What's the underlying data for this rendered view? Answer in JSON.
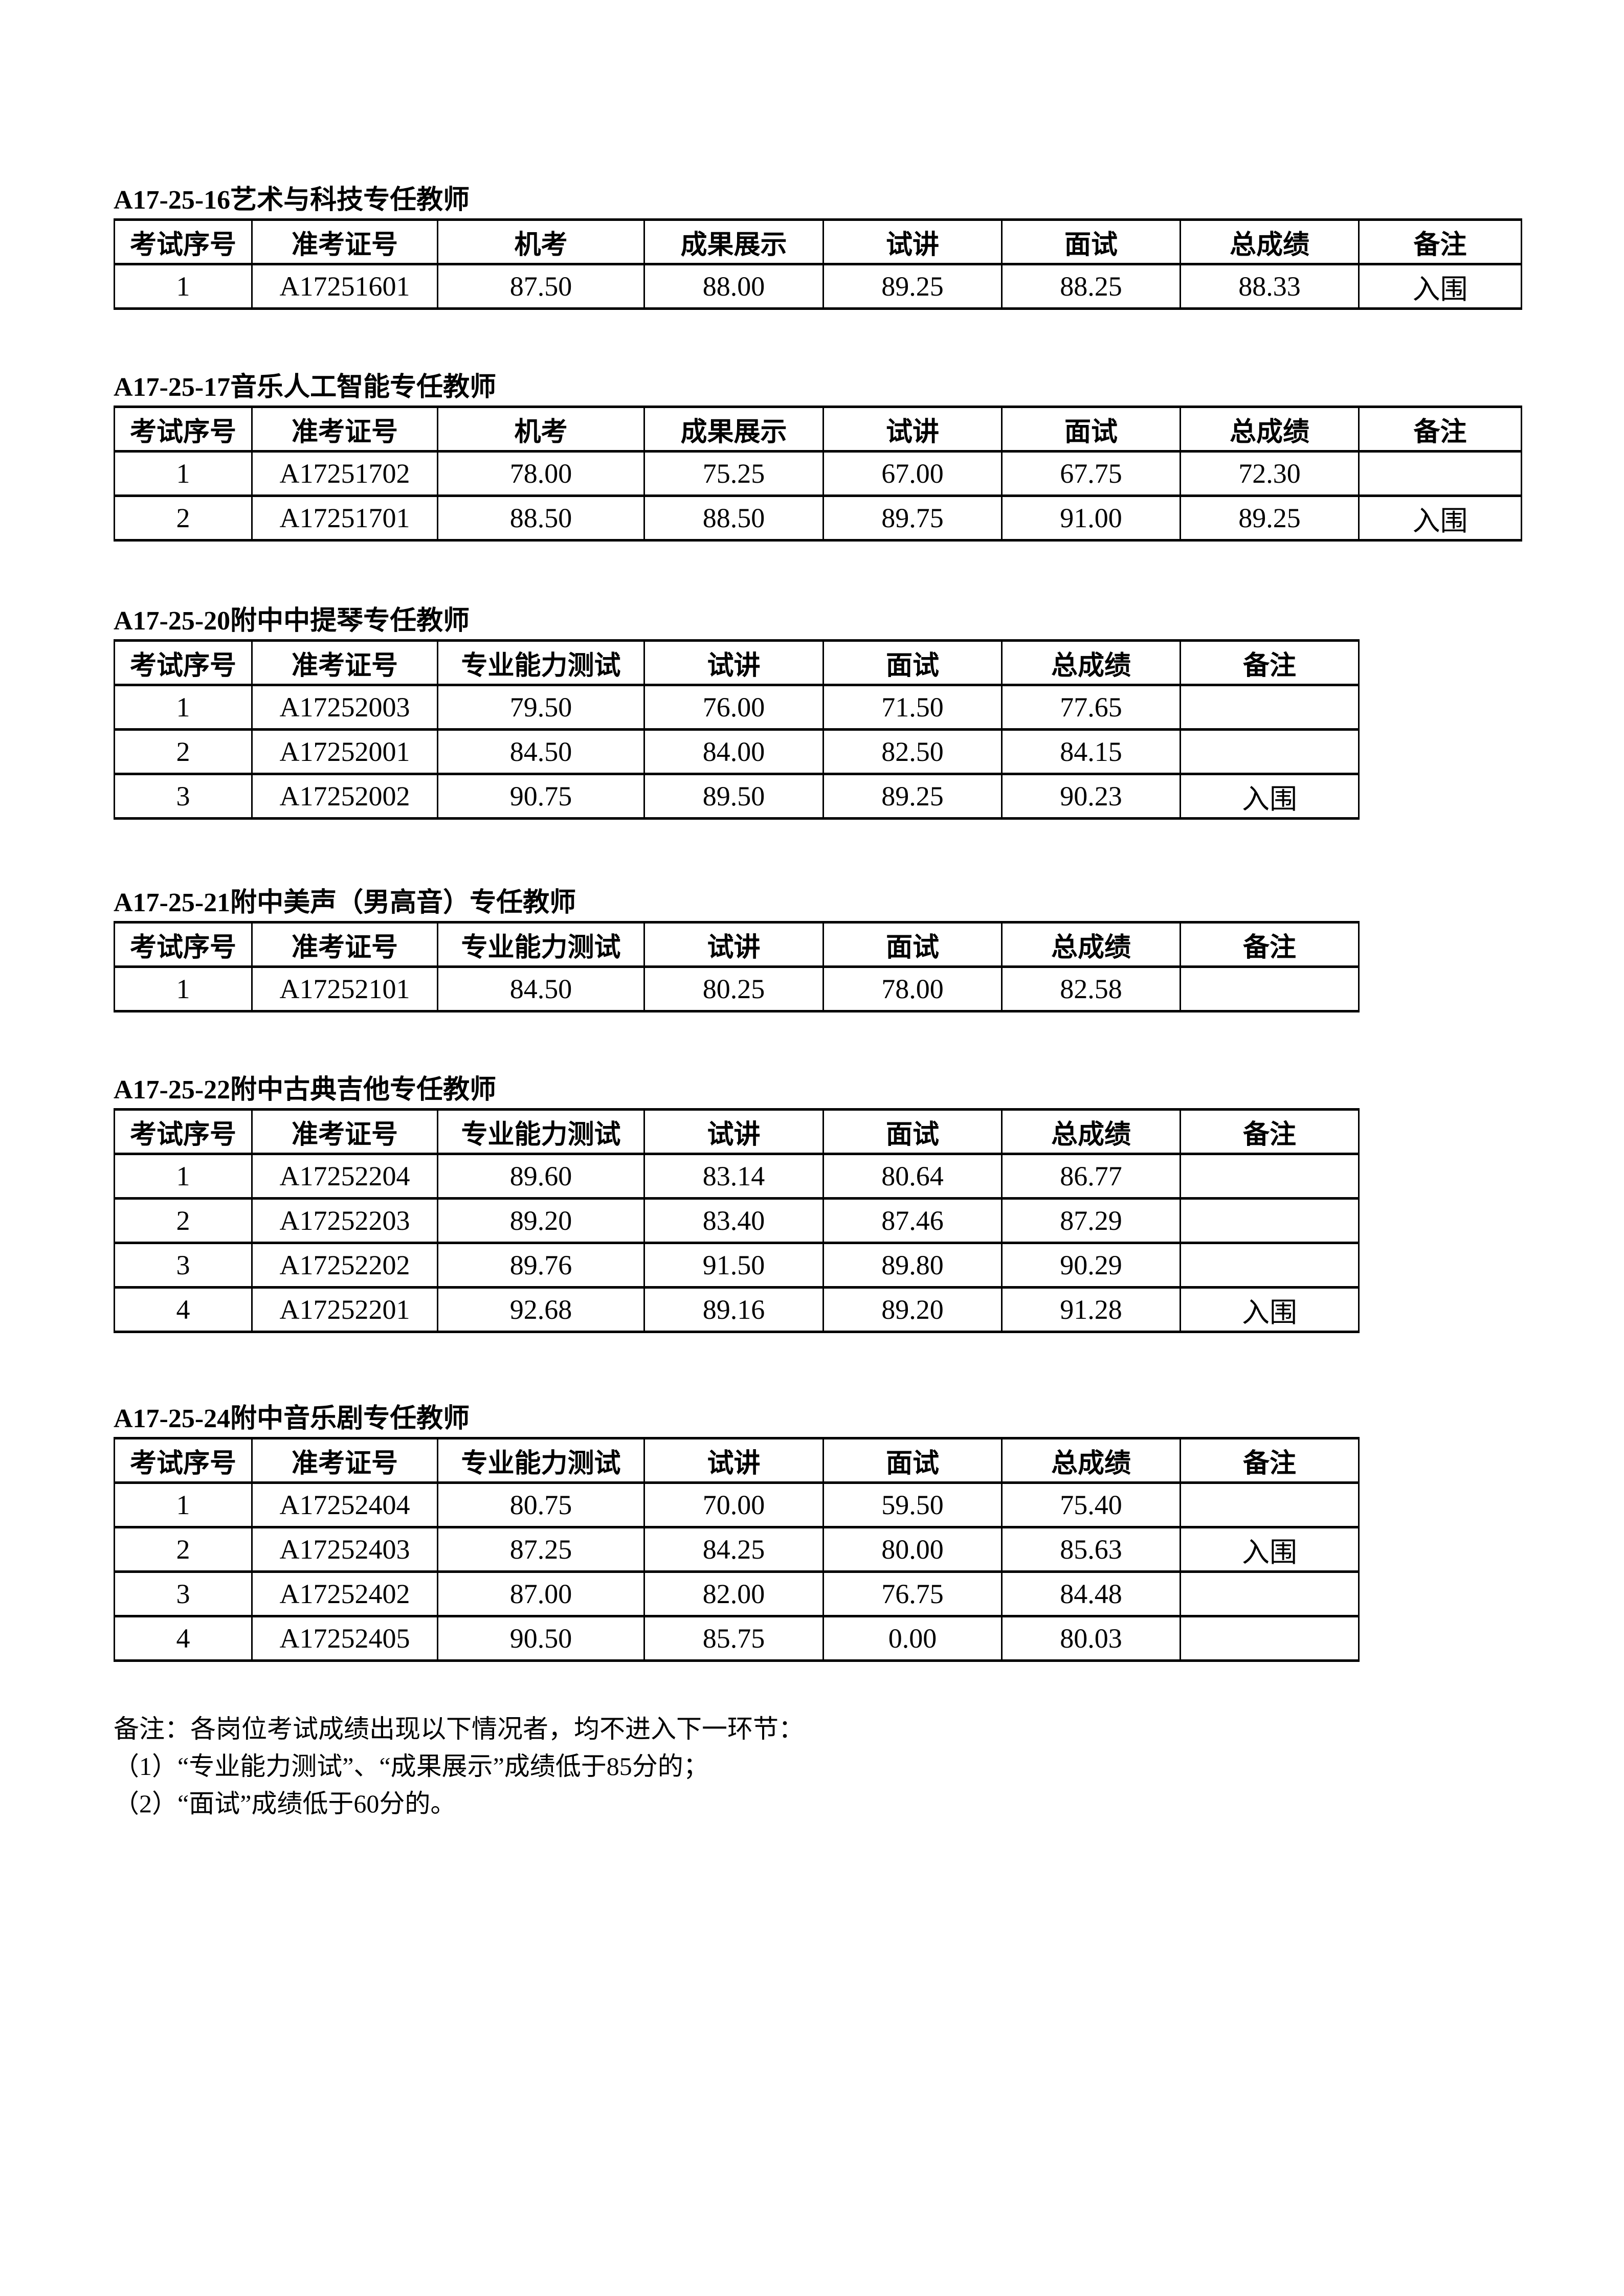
{
  "sections": [
    {
      "title": "A17-25-16艺术与科技专任教师",
      "headers": [
        "考试序号",
        "准考证号",
        "机考",
        "成果展示",
        "试讲",
        "面试",
        "总成绩",
        "备注"
      ],
      "rows": [
        [
          "1",
          "A17251601",
          "87.50",
          "88.00",
          "89.25",
          "88.25",
          "88.33",
          "入围"
        ]
      ]
    },
    {
      "title": "A17-25-17音乐人工智能专任教师",
      "headers": [
        "考试序号",
        "准考证号",
        "机考",
        "成果展示",
        "试讲",
        "面试",
        "总成绩",
        "备注"
      ],
      "rows": [
        [
          "1",
          "A17251702",
          "78.00",
          "75.25",
          "67.00",
          "67.75",
          "72.30",
          ""
        ],
        [
          "2",
          "A17251701",
          "88.50",
          "88.50",
          "89.75",
          "91.00",
          "89.25",
          "入围"
        ]
      ]
    },
    {
      "title": "A17-25-20附中中提琴专任教师",
      "headers": [
        "考试序号",
        "准考证号",
        "专业能力测试",
        "试讲",
        "面试",
        "总成绩",
        "备注"
      ],
      "rows": [
        [
          "1",
          "A17252003",
          "79.50",
          "76.00",
          "71.50",
          "77.65",
          ""
        ],
        [
          "2",
          "A17252001",
          "84.50",
          "84.00",
          "82.50",
          "84.15",
          ""
        ],
        [
          "3",
          "A17252002",
          "90.75",
          "89.50",
          "89.25",
          "90.23",
          "入围"
        ]
      ]
    },
    {
      "title": "A17-25-21附中美声（男高音）专任教师",
      "headers": [
        "考试序号",
        "准考证号",
        "专业能力测试",
        "试讲",
        "面试",
        "总成绩",
        "备注"
      ],
      "rows": [
        [
          "1",
          "A17252101",
          "84.50",
          "80.25",
          "78.00",
          "82.58",
          ""
        ]
      ]
    },
    {
      "title": "A17-25-22附中古典吉他专任教师",
      "headers": [
        "考试序号",
        "准考证号",
        "专业能力测试",
        "试讲",
        "面试",
        "总成绩",
        "备注"
      ],
      "rows": [
        [
          "1",
          "A17252204",
          "89.60",
          "83.14",
          "80.64",
          "86.77",
          ""
        ],
        [
          "2",
          "A17252203",
          "89.20",
          "83.40",
          "87.46",
          "87.29",
          ""
        ],
        [
          "3",
          "A17252202",
          "89.76",
          "91.50",
          "89.80",
          "90.29",
          ""
        ],
        [
          "4",
          "A17252201",
          "92.68",
          "89.16",
          "89.20",
          "91.28",
          "入围"
        ]
      ]
    },
    {
      "title": "A17-25-24附中音乐剧专任教师",
      "headers": [
        "考试序号",
        "准考证号",
        "专业能力测试",
        "试讲",
        "面试",
        "总成绩",
        "备注"
      ],
      "rows": [
        [
          "1",
          "A17252404",
          "80.75",
          "70.00",
          "59.50",
          "75.40",
          ""
        ],
        [
          "2",
          "A17252403",
          "87.25",
          "84.25",
          "80.00",
          "85.63",
          "入围"
        ],
        [
          "3",
          "A17252402",
          "87.00",
          "82.00",
          "76.75",
          "84.48",
          ""
        ],
        [
          "4",
          "A17252405",
          "90.50",
          "85.75",
          "0.00",
          "80.03",
          ""
        ]
      ]
    }
  ],
  "notes": [
    "备注：各岗位考试成绩出现以下情况者，均不进入下一环节：",
    "（1）“专业能力测试”、“成果展示”成绩低于85分的；",
    "（2）“面试”成绩低于60分的。"
  ]
}
